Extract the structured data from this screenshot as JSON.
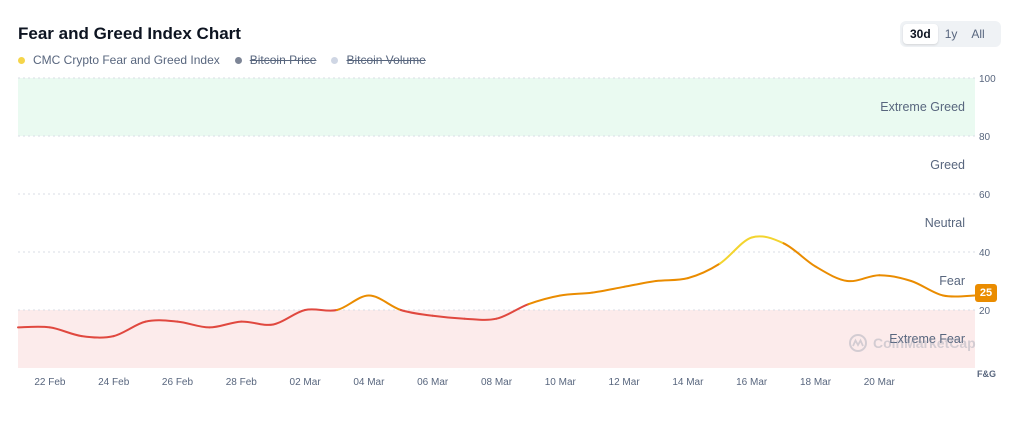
{
  "header": {
    "title": "Fear and Greed Index Chart"
  },
  "legend": [
    {
      "label": "CMC Crypto Fear and Greed Index",
      "color": "#f5d54a",
      "enabled": true
    },
    {
      "label": "Bitcoin Price",
      "color": "#7d8596",
      "enabled": false
    },
    {
      "label": "Bitcoin Volume",
      "color": "#cfd6e4",
      "enabled": false
    }
  ],
  "range_tabs": [
    {
      "label": "30d",
      "active": true
    },
    {
      "label": "1y",
      "active": false
    },
    {
      "label": "All",
      "active": false
    }
  ],
  "watermark": "CoinMarketCap",
  "chart_data": {
    "type": "line",
    "title": "Fear and Greed Index Chart",
    "ylim": [
      0,
      100
    ],
    "ylabel": "F&G",
    "yticks": [
      "20",
      "40",
      "60",
      "80",
      "100"
    ],
    "x_tick_labels": [
      "22 Feb",
      "24 Feb",
      "26 Feb",
      "28 Feb",
      "02 Mar",
      "04 Mar",
      "06 Mar",
      "08 Mar",
      "10 Mar",
      "12 Mar",
      "14 Mar",
      "16 Mar",
      "18 Mar",
      "20 Mar"
    ],
    "zones": [
      {
        "label": "Extreme Fear",
        "from": 0,
        "to": 20,
        "fill": "#fcebeb"
      },
      {
        "label": "Fear",
        "from": 20,
        "to": 40,
        "fill": ""
      },
      {
        "label": "Neutral",
        "from": 40,
        "to": 60,
        "fill": ""
      },
      {
        "label": "Greed",
        "from": 60,
        "to": 80,
        "fill": ""
      },
      {
        "label": "Extreme Greed",
        "from": 80,
        "to": 100,
        "fill": "#eafaf1"
      }
    ],
    "series": [
      {
        "x": [
          "21 Feb",
          "22 Feb",
          "23 Feb",
          "24 Feb",
          "25 Feb",
          "26 Feb",
          "27 Feb",
          "28 Feb",
          "01 Mar",
          "02 Mar",
          "03 Mar",
          "04 Mar",
          "05 Mar",
          "06 Mar",
          "07 Mar",
          "08 Mar",
          "09 Mar",
          "10 Mar",
          "11 Mar",
          "12 Mar",
          "13 Mar",
          "14 Mar",
          "15 Mar",
          "16 Mar",
          "17 Mar",
          "18 Mar",
          "19 Mar",
          "20 Mar",
          "21 Mar",
          "22 Mar",
          "23 Mar"
        ],
        "values": [
          14,
          14,
          11,
          11,
          16,
          16,
          14,
          16,
          15,
          20,
          20,
          25,
          20,
          18,
          17,
          17,
          22,
          25,
          26,
          28,
          30,
          31,
          36,
          45,
          43,
          35,
          30,
          32,
          30,
          25,
          25
        ]
      }
    ],
    "latest_value": 25,
    "colors": {
      "extreme_fear": "#e0483f",
      "fear": "#ea8c00",
      "neutral": "#f3d42f"
    }
  }
}
